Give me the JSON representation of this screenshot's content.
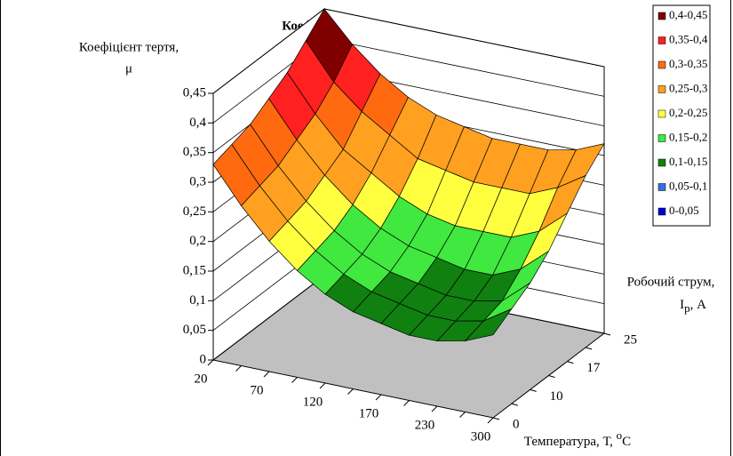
{
  "chart_data": {
    "type": "surface",
    "title": "Коефіцієнт тертя",
    "z_label": [
      "Коефіцієнт тертя,",
      "μ"
    ],
    "y_label": [
      "Робочий струм,",
      "I",
      "р",
      ", А"
    ],
    "x_label": [
      "Температура, Т, ",
      "o",
      "С"
    ],
    "x_categories": [
      "20",
      null,
      "70",
      null,
      "120",
      null,
      "170",
      null,
      "230",
      null,
      "300"
    ],
    "y_categories": [
      "0",
      null,
      "10",
      null,
      "17",
      null,
      "25"
    ],
    "values": [
      [
        0.33,
        0.27,
        0.22,
        0.18,
        0.15,
        0.13,
        0.12,
        0.11,
        0.11,
        0.12,
        0.14
      ],
      [
        0.34,
        0.28,
        0.23,
        0.19,
        0.16,
        0.14,
        0.13,
        0.12,
        0.12,
        0.13,
        0.16
      ],
      [
        0.35,
        0.29,
        0.24,
        0.2,
        0.17,
        0.15,
        0.14,
        0.13,
        0.13,
        0.14,
        0.18
      ],
      [
        0.37,
        0.31,
        0.26,
        0.22,
        0.19,
        0.17,
        0.16,
        0.15,
        0.15,
        0.17,
        0.21
      ],
      [
        0.39,
        0.33,
        0.28,
        0.25,
        0.22,
        0.2,
        0.19,
        0.19,
        0.19,
        0.21,
        0.25
      ],
      [
        0.42,
        0.36,
        0.32,
        0.29,
        0.26,
        0.25,
        0.24,
        0.24,
        0.24,
        0.26,
        0.29
      ],
      [
        0.45,
        0.4,
        0.36,
        0.33,
        0.31,
        0.3,
        0.29,
        0.29,
        0.29,
        0.3,
        0.32
      ]
    ],
    "zlim": [
      0,
      0.45
    ],
    "zticks": [
      0,
      {
        "value": 0.05,
        "label": "0,05"
      },
      {
        "value": 0.1,
        "label": "0,1"
      },
      {
        "value": 0.15,
        "label": "0,15"
      },
      {
        "value": 0.2,
        "label": "0,2"
      },
      {
        "value": 0.25,
        "label": "0,25"
      },
      {
        "value": 0.3,
        "label": "0,3"
      },
      {
        "value": 0.35,
        "label": "0,35"
      },
      {
        "value": 0.4,
        "label": "0,4"
      },
      {
        "value": 0.45,
        "label": "0,45"
      }
    ],
    "grid": true,
    "legend_position": "top-right",
    "bands": [
      {
        "label": "0,4-0,45",
        "min": 0.4,
        "max": 0.45,
        "color": "#800000"
      },
      {
        "label": "0,35-0,4",
        "min": 0.35,
        "max": 0.4,
        "color": "#ff2020"
      },
      {
        "label": "0,3-0,35",
        "min": 0.3,
        "max": 0.35,
        "color": "#ff6a10"
      },
      {
        "label": "0,25-0,3",
        "min": 0.25,
        "max": 0.3,
        "color": "#ffa020"
      },
      {
        "label": "0,2-0,25",
        "min": 0.2,
        "max": 0.25,
        "color": "#ffff40"
      },
      {
        "label": "0,15-0,2",
        "min": 0.15,
        "max": 0.2,
        "color": "#40e840"
      },
      {
        "label": "0,1-0,15",
        "min": 0.1,
        "max": 0.15,
        "color": "#108010"
      },
      {
        "label": "0,05-0,1",
        "min": 0.05,
        "max": 0.1,
        "color": "#3070e0"
      },
      {
        "label": "0-0,05",
        "min": 0,
        "max": 0.05,
        "color": "#0000d0"
      }
    ]
  }
}
